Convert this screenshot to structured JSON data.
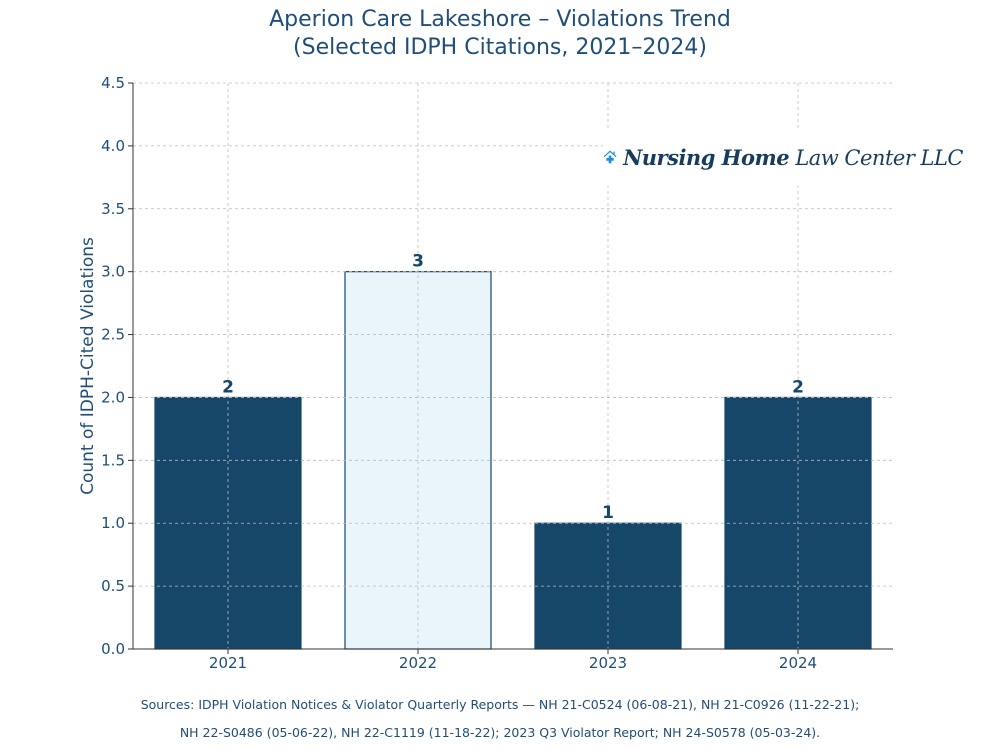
{
  "chart_data": {
    "type": "bar",
    "title": "Aperion Care Lakeshore – Violations Trend",
    "subtitle": "(Selected IDPH Citations, 2021–2024)",
    "xlabel": "",
    "ylabel": "Count of IDPH-Cited Violations",
    "categories": [
      "2021",
      "2022",
      "2023",
      "2024"
    ],
    "values": [
      2,
      3,
      1,
      2
    ],
    "data_labels": [
      "2",
      "3",
      "1",
      "2"
    ],
    "ylim": [
      0,
      4.5
    ],
    "yticks": [
      "0.0",
      "0.5",
      "1.0",
      "1.5",
      "2.0",
      "2.5",
      "3.0",
      "3.5",
      "4.0",
      "4.5"
    ],
    "grid": true,
    "colors": {
      "default": "#164668",
      "highlight": "#e9f4fb",
      "highlight_edge": "#164668"
    },
    "highlighted_category": "2022"
  },
  "logo": {
    "text_bold": "Nursing Home",
    "text_regular": "Law Center LLC",
    "icon": "house-medical-cross-icon"
  },
  "sources": {
    "line1": "Sources: IDPH Violation Notices & Violator Quarterly Reports — NH 21-C0524 (06-08-21), NH 21-C0926 (11-22-21);",
    "line2": "NH 22-S0486 (05-06-22), NH 22-C1119 (11-18-22); 2023 Q3 Violator Report; NH 24-S0578 (05-03-24)."
  }
}
